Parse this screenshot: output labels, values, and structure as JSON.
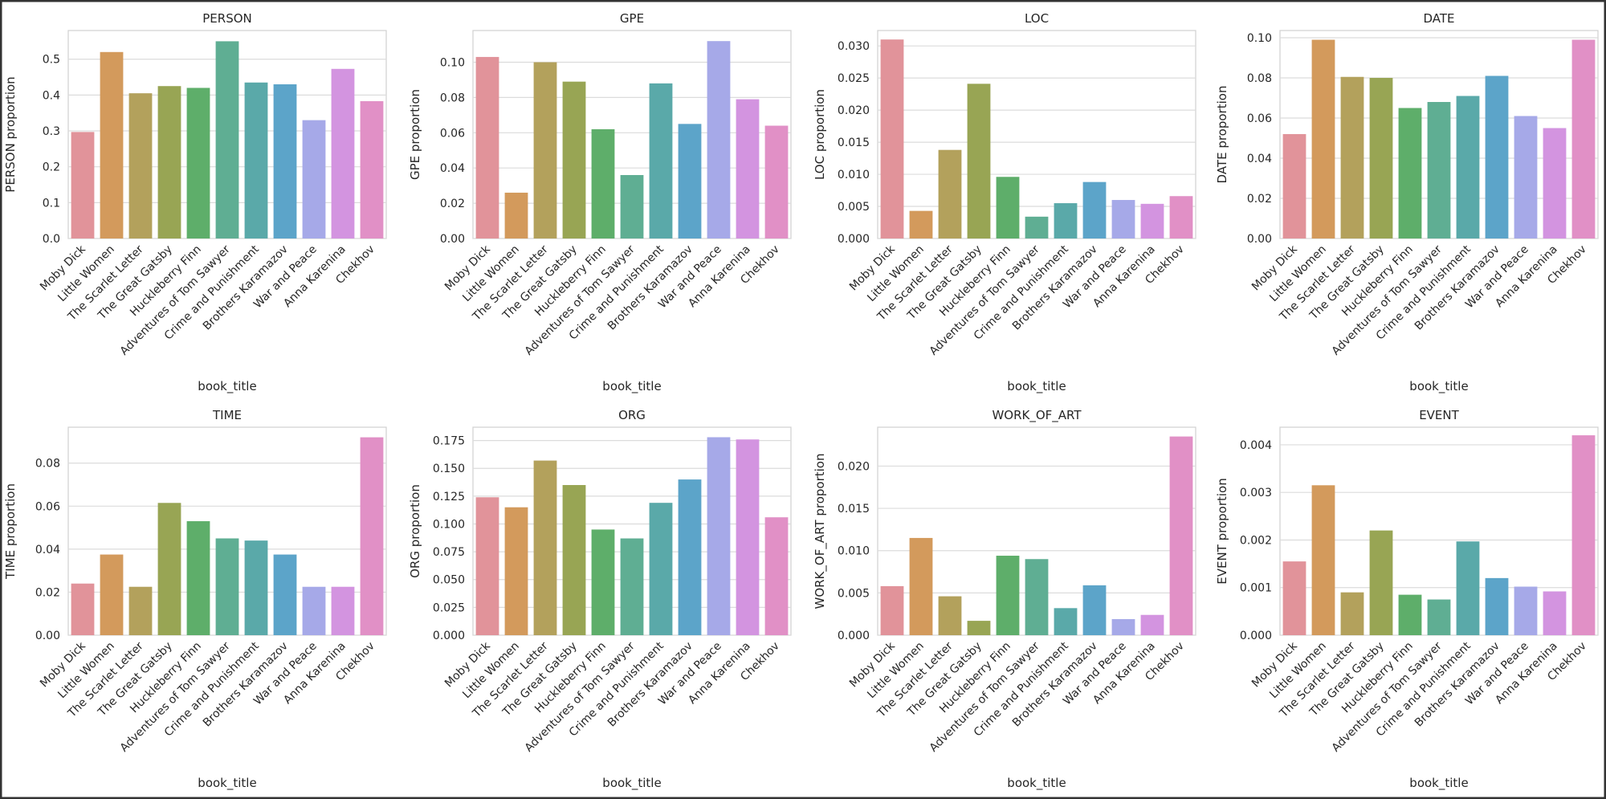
{
  "chart_data": [
    {
      "type": "bar",
      "title": "PERSON",
      "xlabel": "book_title",
      "ylabel": "PERSON proportion",
      "categories": [
        "Moby Dick",
        "Little Women",
        "The Scarlet Letter",
        "The Great Gatsby",
        "Huckleberry Finn",
        "Adventures of Tom Sawyer",
        "Crime and Punishment",
        "Brothers Karamazov",
        "War and Peace",
        "Anna Karenina",
        "Chekhov"
      ],
      "values": [
        0.297,
        0.52,
        0.405,
        0.425,
        0.42,
        0.55,
        0.435,
        0.43,
        0.33,
        0.473,
        0.383
      ],
      "colors": [
        "#e1939a",
        "#d39a5c",
        "#b3a15c",
        "#98a554",
        "#5eae6a",
        "#5fae93",
        "#5aa9a9",
        "#5ca4c9",
        "#a6a9e8",
        "#d394e0",
        "#e190c6"
      ],
      "ylim": [
        0,
        0.58
      ],
      "yticks": [
        {
          "value": 0,
          "label": "0.0"
        },
        {
          "value": 0.1,
          "label": "0.1"
        },
        {
          "value": 0.2,
          "label": "0.2"
        },
        {
          "value": 0.3,
          "label": "0.3"
        },
        {
          "value": 0.4,
          "label": "0.4"
        },
        {
          "value": 0.5,
          "label": "0.5"
        }
      ],
      "grid": true
    },
    {
      "type": "bar",
      "title": "GPE",
      "xlabel": "book_title",
      "ylabel": "GPE proportion",
      "categories": [
        "Moby Dick",
        "Little Women",
        "The Scarlet Letter",
        "The Great Gatsby",
        "Huckleberry Finn",
        "Adventures of Tom Sawyer",
        "Crime and Punishment",
        "Brothers Karamazov",
        "War and Peace",
        "Anna Karenina",
        "Chekhov"
      ],
      "values": [
        0.103,
        0.026,
        0.1,
        0.089,
        0.062,
        0.036,
        0.088,
        0.065,
        0.112,
        0.079,
        0.064
      ],
      "colors": [
        "#e1939a",
        "#d39a5c",
        "#b3a15c",
        "#98a554",
        "#5eae6a",
        "#5fae93",
        "#5aa9a9",
        "#5ca4c9",
        "#a6a9e8",
        "#d394e0",
        "#e190c6"
      ],
      "ylim": [
        0,
        0.118
      ],
      "yticks": [
        {
          "value": 0,
          "label": "0.00"
        },
        {
          "value": 0.02,
          "label": "0.02"
        },
        {
          "value": 0.04,
          "label": "0.04"
        },
        {
          "value": 0.06,
          "label": "0.06"
        },
        {
          "value": 0.08,
          "label": "0.08"
        },
        {
          "value": 0.1,
          "label": "0.10"
        }
      ],
      "grid": true
    },
    {
      "type": "bar",
      "title": "LOC",
      "xlabel": "book_title",
      "ylabel": "LOC proportion",
      "categories": [
        "Moby Dick",
        "Little Women",
        "The Scarlet Letter",
        "The Great Gatsby",
        "Huckleberry Finn",
        "Adventures of Tom Sawyer",
        "Crime and Punishment",
        "Brothers Karamazov",
        "War and Peace",
        "Anna Karenina",
        "Chekhov"
      ],
      "values": [
        0.031,
        0.0043,
        0.0138,
        0.0241,
        0.0096,
        0.0034,
        0.0055,
        0.0088,
        0.006,
        0.0054,
        0.0066
      ],
      "colors": [
        "#e1939a",
        "#d39a5c",
        "#b3a15c",
        "#98a554",
        "#5eae6a",
        "#5fae93",
        "#5aa9a9",
        "#5ca4c9",
        "#a6a9e8",
        "#d394e0",
        "#e190c6"
      ],
      "ylim": [
        0,
        0.0324
      ],
      "yticks": [
        {
          "value": 0,
          "label": "0.000"
        },
        {
          "value": 0.005,
          "label": "0.005"
        },
        {
          "value": 0.01,
          "label": "0.010"
        },
        {
          "value": 0.015,
          "label": "0.015"
        },
        {
          "value": 0.02,
          "label": "0.020"
        },
        {
          "value": 0.025,
          "label": "0.025"
        },
        {
          "value": 0.03,
          "label": "0.030"
        }
      ],
      "grid": true
    },
    {
      "type": "bar",
      "title": "DATE",
      "xlabel": "book_title",
      "ylabel": "DATE proportion",
      "categories": [
        "Moby Dick",
        "Little Women",
        "The Scarlet Letter",
        "The Great Gatsby",
        "Huckleberry Finn",
        "Adventures of Tom Sawyer",
        "Crime and Punishment",
        "Brothers Karamazov",
        "War and Peace",
        "Anna Karenina",
        "Chekhov"
      ],
      "values": [
        0.052,
        0.099,
        0.0805,
        0.08,
        0.065,
        0.068,
        0.071,
        0.081,
        0.061,
        0.055,
        0.099
      ],
      "colors": [
        "#e1939a",
        "#d39a5c",
        "#b3a15c",
        "#98a554",
        "#5eae6a",
        "#5fae93",
        "#5aa9a9",
        "#5ca4c9",
        "#a6a9e8",
        "#d394e0",
        "#e190c6"
      ],
      "ylim": [
        0,
        0.1036
      ],
      "yticks": [
        {
          "value": 0,
          "label": "0.00"
        },
        {
          "value": 0.02,
          "label": "0.02"
        },
        {
          "value": 0.04,
          "label": "0.04"
        },
        {
          "value": 0.06,
          "label": "0.06"
        },
        {
          "value": 0.08,
          "label": "0.08"
        },
        {
          "value": 0.1,
          "label": "0.10"
        }
      ],
      "grid": true
    },
    {
      "type": "bar",
      "title": "TIME",
      "xlabel": "book_title",
      "ylabel": "TIME proportion",
      "categories": [
        "Moby Dick",
        "Little Women",
        "The Scarlet Letter",
        "The Great Gatsby",
        "Huckleberry Finn",
        "Adventures of Tom Sawyer",
        "Crime and Punishment",
        "Brothers Karamazov",
        "War and Peace",
        "Anna Karenina",
        "Chekhov"
      ],
      "values": [
        0.024,
        0.0375,
        0.0225,
        0.0615,
        0.053,
        0.045,
        0.044,
        0.0375,
        0.0225,
        0.0225,
        0.092
      ],
      "colors": [
        "#e1939a",
        "#d39a5c",
        "#b3a15c",
        "#98a554",
        "#5eae6a",
        "#5fae93",
        "#5aa9a9",
        "#5ca4c9",
        "#a6a9e8",
        "#d394e0",
        "#e190c6"
      ],
      "ylim": [
        0,
        0.0967
      ],
      "yticks": [
        {
          "value": 0,
          "label": "0.00"
        },
        {
          "value": 0.02,
          "label": "0.02"
        },
        {
          "value": 0.04,
          "label": "0.04"
        },
        {
          "value": 0.06,
          "label": "0.06"
        },
        {
          "value": 0.08,
          "label": "0.08"
        }
      ],
      "grid": true
    },
    {
      "type": "bar",
      "title": "ORG",
      "xlabel": "book_title",
      "ylabel": "ORG proportion",
      "categories": [
        "Moby Dick",
        "Little Women",
        "The Scarlet Letter",
        "The Great Gatsby",
        "Huckleberry Finn",
        "Adventures of Tom Sawyer",
        "Crime and Punishment",
        "Brothers Karamazov",
        "War and Peace",
        "Anna Karenina",
        "Chekhov"
      ],
      "values": [
        0.124,
        0.115,
        0.157,
        0.135,
        0.095,
        0.087,
        0.119,
        0.14,
        0.178,
        0.176,
        0.106
      ],
      "colors": [
        "#e1939a",
        "#d39a5c",
        "#b3a15c",
        "#98a554",
        "#5eae6a",
        "#5fae93",
        "#5aa9a9",
        "#5ca4c9",
        "#a6a9e8",
        "#d394e0",
        "#e190c6"
      ],
      "ylim": [
        0,
        0.187
      ],
      "yticks": [
        {
          "value": 0,
          "label": "0.000"
        },
        {
          "value": 0.025,
          "label": "0.025"
        },
        {
          "value": 0.05,
          "label": "0.050"
        },
        {
          "value": 0.075,
          "label": "0.075"
        },
        {
          "value": 0.1,
          "label": "0.100"
        },
        {
          "value": 0.125,
          "label": "0.125"
        },
        {
          "value": 0.15,
          "label": "0.150"
        },
        {
          "value": 0.175,
          "label": "0.175"
        }
      ],
      "grid": true
    },
    {
      "type": "bar",
      "title": "WORK_OF_ART",
      "xlabel": "book_title",
      "ylabel": "WORK_OF_ART proportion",
      "categories": [
        "Moby Dick",
        "Little Women",
        "The Scarlet Letter",
        "The Great Gatsby",
        "Huckleberry Finn",
        "Adventures of Tom Sawyer",
        "Crime and Punishment",
        "Brothers Karamazov",
        "War and Peace",
        "Anna Karenina",
        "Chekhov"
      ],
      "values": [
        0.0058,
        0.0115,
        0.0046,
        0.0017,
        0.0094,
        0.009,
        0.0032,
        0.0059,
        0.0019,
        0.0024,
        0.0235
      ],
      "colors": [
        "#e1939a",
        "#d39a5c",
        "#b3a15c",
        "#98a554",
        "#5eae6a",
        "#5fae93",
        "#5aa9a9",
        "#5ca4c9",
        "#a6a9e8",
        "#d394e0",
        "#e190c6"
      ],
      "ylim": [
        0,
        0.0246
      ],
      "yticks": [
        {
          "value": 0,
          "label": "0.000"
        },
        {
          "value": 0.005,
          "label": "0.005"
        },
        {
          "value": 0.01,
          "label": "0.010"
        },
        {
          "value": 0.015,
          "label": "0.015"
        },
        {
          "value": 0.02,
          "label": "0.020"
        }
      ],
      "grid": true
    },
    {
      "type": "bar",
      "title": "EVENT",
      "xlabel": "book_title",
      "ylabel": "EVENT proportion",
      "categories": [
        "Moby Dick",
        "Little Women",
        "The Scarlet Letter",
        "The Great Gatsby",
        "Huckleberry Finn",
        "Adventures of Tom Sawyer",
        "Crime and Punishment",
        "Brothers Karamazov",
        "War and Peace",
        "Anna Karenina",
        "Chekhov"
      ],
      "values": [
        0.00155,
        0.00315,
        0.0009,
        0.0022,
        0.00085,
        0.00075,
        0.00197,
        0.0012,
        0.00102,
        0.00092,
        0.0042
      ],
      "colors": [
        "#e1939a",
        "#d39a5c",
        "#b3a15c",
        "#98a554",
        "#5eae6a",
        "#5fae93",
        "#5aa9a9",
        "#5ca4c9",
        "#a6a9e8",
        "#d394e0",
        "#e190c6"
      ],
      "ylim": [
        0,
        0.00437
      ],
      "yticks": [
        {
          "value": 0,
          "label": "0.000"
        },
        {
          "value": 0.001,
          "label": "0.001"
        },
        {
          "value": 0.002,
          "label": "0.002"
        },
        {
          "value": 0.003,
          "label": "0.003"
        },
        {
          "value": 0.004,
          "label": "0.004"
        }
      ],
      "grid": true
    }
  ]
}
